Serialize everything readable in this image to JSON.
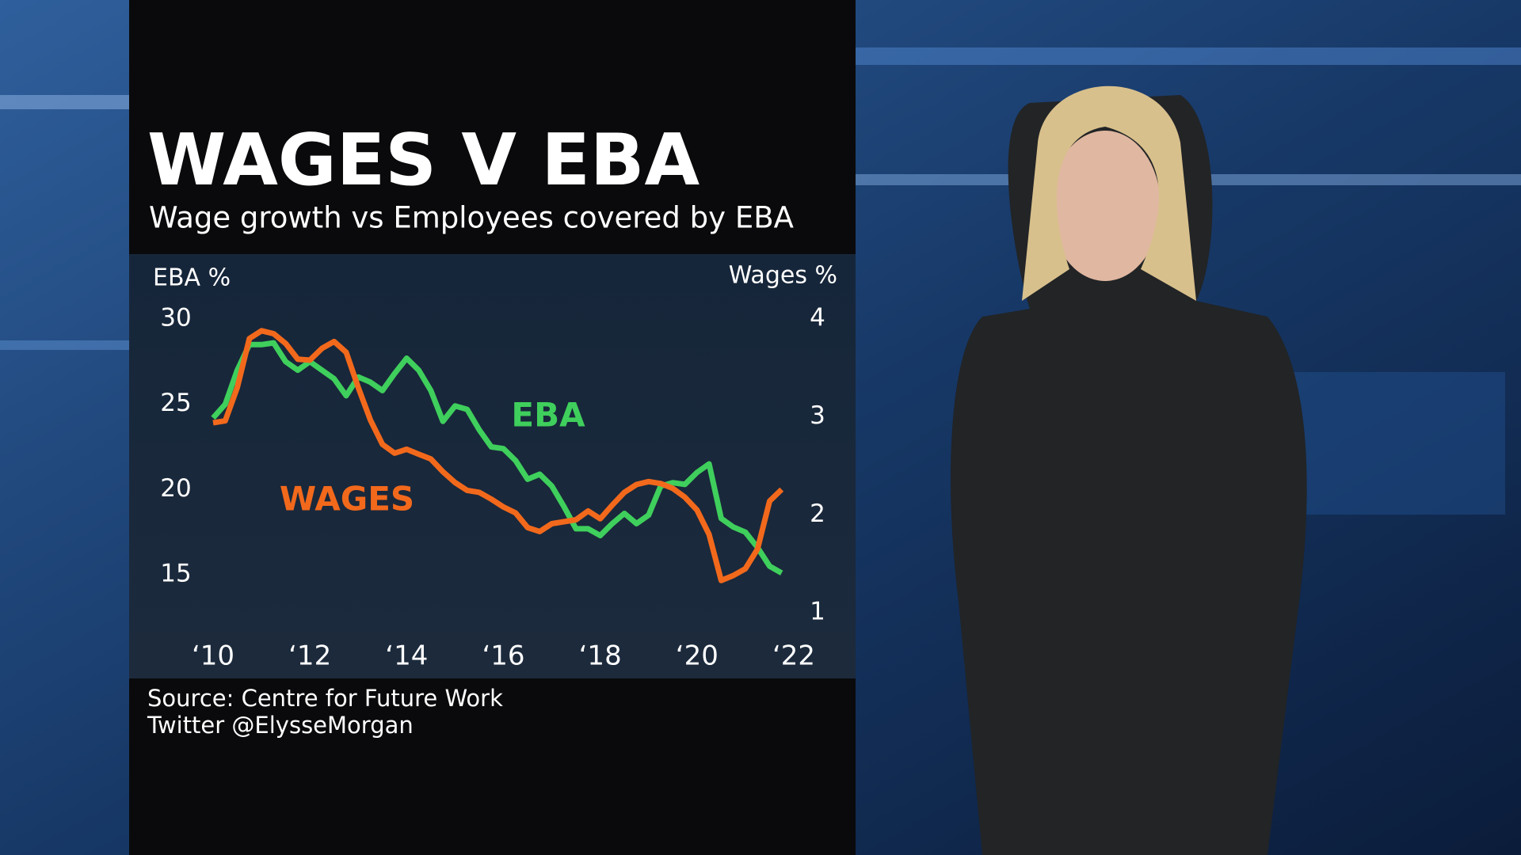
{
  "chart_data": {
    "type": "line",
    "title": "WAGES V EBA",
    "subtitle": "Wage growth vs Employees covered by EBA",
    "y_label": "EBA %",
    "y2_label": "Wages %",
    "source": "Source: Centre for Future Work",
    "credit": "Twitter @ElysseMorgan",
    "xlim": [
      2010,
      2022
    ],
    "xticks": [
      {
        "value": 2010,
        "label": "‘10"
      },
      {
        "value": 2012,
        "label": "‘12"
      },
      {
        "value": 2014,
        "label": "‘14"
      },
      {
        "value": 2016,
        "label": "‘16"
      },
      {
        "value": 2018,
        "label": "‘18"
      },
      {
        "value": 2020,
        "label": "‘20"
      },
      {
        "value": 2022,
        "label": "‘22"
      }
    ],
    "ylim": [
      15,
      30
    ],
    "yticks": [
      30,
      25,
      20,
      15
    ],
    "y2lim": [
      1,
      4
    ],
    "y2ticks": [
      4,
      3,
      2,
      1
    ],
    "x": [
      2010,
      2010.25,
      2010.5,
      2010.75,
      2011,
      2011.25,
      2011.5,
      2011.75,
      2012,
      2012.25,
      2012.5,
      2012.75,
      2013,
      2013.25,
      2013.5,
      2013.75,
      2014,
      2014.25,
      2014.5,
      2014.75,
      2015,
      2015.25,
      2015.5,
      2015.75,
      2016,
      2016.25,
      2016.5,
      2016.75,
      2017,
      2017.25,
      2017.5,
      2017.75,
      2018,
      2018.25,
      2018.5,
      2018.75,
      2019,
      2019.25,
      2019.5,
      2019.75,
      2020,
      2020.25,
      2020.5,
      2020.75,
      2021,
      2021.25,
      2021.5,
      2021.75
    ],
    "series": [
      {
        "name": "EBA",
        "color": "#3fcf5c",
        "axis": "y",
        "values": [
          24.2,
          25.0,
          27.0,
          28.5,
          28.5,
          28.6,
          27.5,
          27.0,
          27.5,
          27.0,
          26.5,
          25.5,
          26.6,
          26.3,
          25.8,
          26.8,
          27.7,
          27.0,
          25.8,
          24.0,
          24.9,
          24.7,
          23.5,
          22.5,
          22.4,
          21.7,
          20.6,
          20.9,
          20.2,
          19.0,
          17.7,
          17.7,
          17.3,
          18.0,
          18.6,
          18.0,
          18.5,
          20.2,
          20.4,
          20.3,
          21.0,
          21.5,
          18.3,
          17.8,
          17.5,
          16.6,
          15.5,
          15.1
        ]
      },
      {
        "name": "WAGES",
        "color": "#f2691c",
        "axis": "y2",
        "values": [
          2.94,
          2.96,
          3.3,
          3.8,
          3.88,
          3.85,
          3.75,
          3.59,
          3.58,
          3.7,
          3.77,
          3.66,
          3.3,
          2.97,
          2.72,
          2.63,
          2.67,
          2.62,
          2.57,
          2.44,
          2.33,
          2.25,
          2.23,
          2.16,
          2.08,
          2.02,
          1.87,
          1.83,
          1.91,
          1.93,
          1.95,
          2.04,
          1.96,
          2.1,
          2.23,
          2.31,
          2.34,
          2.32,
          2.27,
          2.18,
          2.05,
          1.8,
          1.33,
          1.38,
          1.45,
          1.65,
          2.14,
          2.26
        ]
      }
    ]
  }
}
